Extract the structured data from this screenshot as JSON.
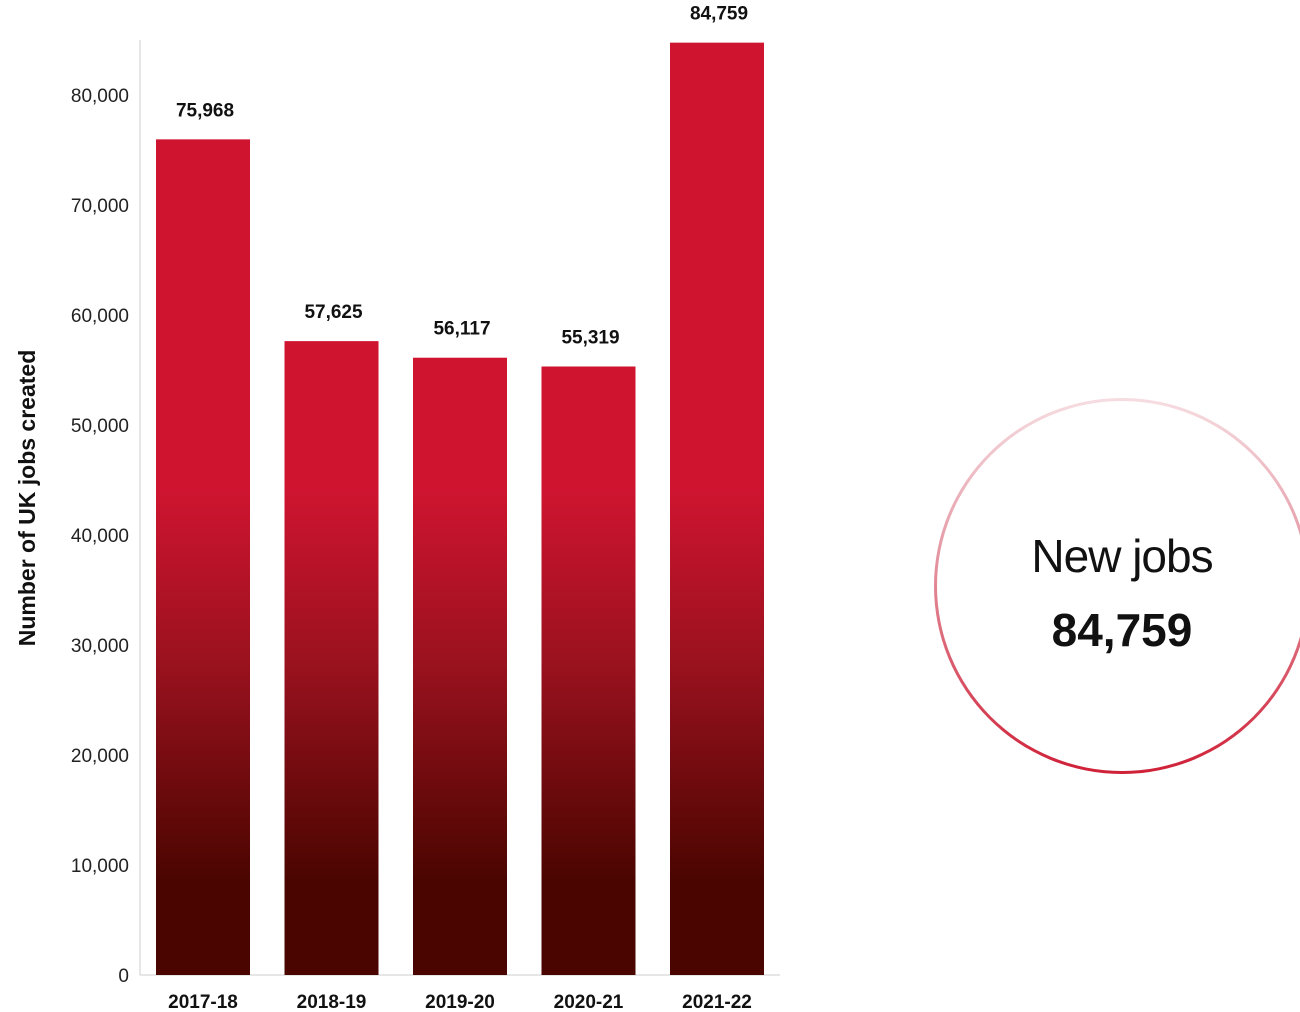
{
  "chart_data": {
    "type": "bar",
    "categories": [
      "2017-18",
      "2018-19",
      "2019-20",
      "2020-21",
      "2021-22"
    ],
    "values": [
      75968,
      57625,
      56117,
      55319,
      84759
    ],
    "value_labels": [
      "75,968",
      "57,625",
      "56,117",
      "55,319",
      "84,759"
    ],
    "title": "",
    "xlabel": "",
    "ylabel": "Number of UK jobs created",
    "ylim": [
      0,
      85000
    ],
    "yticks": [
      0,
      10000,
      20000,
      30000,
      40000,
      50000,
      60000,
      70000,
      80000
    ],
    "ytick_labels": [
      "0",
      "10,000",
      "20,000",
      "30,000",
      "40,000",
      "50,000",
      "60,000",
      "70,000",
      "80,000"
    ],
    "grid": false,
    "legend": "none",
    "colors": {
      "bar_top": "#cf1430",
      "bar_bottom": "#4a0500",
      "axis": "#cccccc"
    }
  },
  "callout": {
    "label": "New jobs",
    "value": "84,759",
    "ring_color": "#cf2037"
  }
}
